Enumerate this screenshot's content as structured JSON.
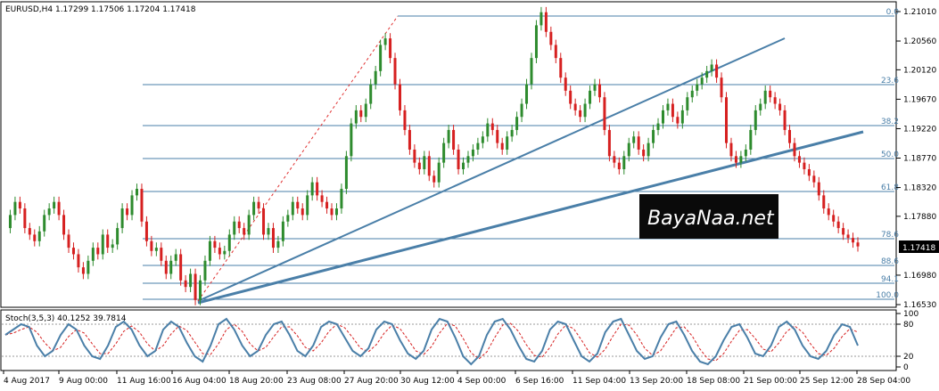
{
  "chart_data": {
    "type": "candlestick",
    "symbol_header": "EURUSD,H4  1.17299 1.17506 1.17204 1.17418",
    "price_axis": {
      "ticks": [
        "1.21010",
        "1.20560",
        "1.20120",
        "1.19670",
        "1.19220",
        "1.18770",
        "1.18320",
        "1.17880",
        "1.17418",
        "1.16980",
        "1.16530"
      ],
      "ylim": [
        1.1653,
        1.2101
      ],
      "current_price": "1.17418"
    },
    "time_axis": [
      "4 Aug 2017",
      "9 Aug 00:00",
      "11 Aug 16:00",
      "16 Aug 04:00",
      "18 Aug 20:00",
      "23 Aug 08:00",
      "27 Aug 20:00",
      "30 Aug 12:00",
      "4 Sep 00:00",
      "6 Sep 16:00",
      "11 Sep 04:00",
      "13 Sep 20:00",
      "18 Sep 08:00",
      "21 Sep 00:00",
      "25 Sep 12:00",
      "28 Sep 04:00"
    ],
    "fibonacci_levels": [
      "0.0",
      "23.6",
      "38.2",
      "50.0",
      "61.8",
      "78.6",
      "88.6",
      "94.1",
      "100.0"
    ],
    "price_path": [
      1.177,
      1.179,
      1.181,
      1.18,
      1.177,
      1.176,
      1.175,
      1.1765,
      1.179,
      1.18,
      1.181,
      1.179,
      1.176,
      1.174,
      1.173,
      1.171,
      1.17,
      1.172,
      1.174,
      1.173,
      1.176,
      1.174,
      1.1745,
      1.177,
      1.18,
      1.179,
      1.182,
      1.183,
      1.178,
      1.175,
      1.1735,
      1.174,
      1.172,
      1.17,
      1.172,
      1.173,
      1.169,
      1.168,
      1.17,
      1.166,
      1.169,
      1.172,
      1.175,
      1.174,
      1.173,
      1.1735,
      1.176,
      1.178,
      1.177,
      1.176,
      1.179,
      1.181,
      1.18,
      1.176,
      1.177,
      1.174,
      1.175,
      1.178,
      1.179,
      1.181,
      1.18,
      1.179,
      1.182,
      1.184,
      1.182,
      1.181,
      1.18,
      1.179,
      1.18,
      1.183,
      1.188,
      1.193,
      1.195,
      1.194,
      1.196,
      1.199,
      1.201,
      1.205,
      1.206,
      1.203,
      1.199,
      1.195,
      1.192,
      1.189,
      1.187,
      1.186,
      1.188,
      1.185,
      1.184,
      1.187,
      1.19,
      1.192,
      1.189,
      1.186,
      1.187,
      1.188,
      1.189,
      1.19,
      1.191,
      1.193,
      1.192,
      1.19,
      1.189,
      1.191,
      1.192,
      1.194,
      1.196,
      1.199,
      1.203,
      1.208,
      1.21,
      1.207,
      1.205,
      1.203,
      1.2,
      1.198,
      1.196,
      1.195,
      1.194,
      1.196,
      1.198,
      1.199,
      1.197,
      1.192,
      1.188,
      1.187,
      1.186,
      1.188,
      1.19,
      1.191,
      1.189,
      1.188,
      1.19,
      1.192,
      1.193,
      1.195,
      1.196,
      1.194,
      1.193,
      1.195,
      1.197,
      1.198,
      1.199,
      1.2,
      1.201,
      1.202,
      1.2,
      1.197,
      1.19,
      1.188,
      1.187,
      1.188,
      1.189,
      1.192,
      1.195,
      1.196,
      1.198,
      1.197,
      1.196,
      1.195,
      1.192,
      1.19,
      1.188,
      1.187,
      1.186,
      1.185,
      1.184,
      1.182,
      1.18,
      1.179,
      1.178,
      1.177,
      1.176,
      1.1755,
      1.1748,
      1.1742
    ]
  },
  "stoch": {
    "label": "Stoch(3,5,3) 40.1252 39.7814",
    "ticks": [
      "100",
      "80",
      "20",
      "0"
    ],
    "main": [
      60,
      70,
      80,
      75,
      40,
      20,
      30,
      60,
      80,
      70,
      40,
      20,
      15,
      40,
      75,
      85,
      70,
      40,
      20,
      30,
      70,
      85,
      75,
      45,
      20,
      10,
      40,
      80,
      90,
      70,
      40,
      20,
      30,
      60,
      80,
      85,
      60,
      30,
      20,
      40,
      75,
      85,
      80,
      55,
      30,
      20,
      35,
      70,
      85,
      80,
      50,
      25,
      15,
      30,
      70,
      90,
      85,
      55,
      20,
      5,
      20,
      60,
      85,
      90,
      70,
      40,
      15,
      10,
      30,
      70,
      85,
      80,
      50,
      20,
      10,
      25,
      65,
      85,
      90,
      60,
      30,
      15,
      20,
      55,
      80,
      85,
      60,
      30,
      10,
      5,
      20,
      50,
      75,
      80,
      55,
      25,
      20,
      40,
      75,
      85,
      70,
      40,
      20,
      15,
      30,
      60,
      80,
      75,
      40
    ]
  }
}
